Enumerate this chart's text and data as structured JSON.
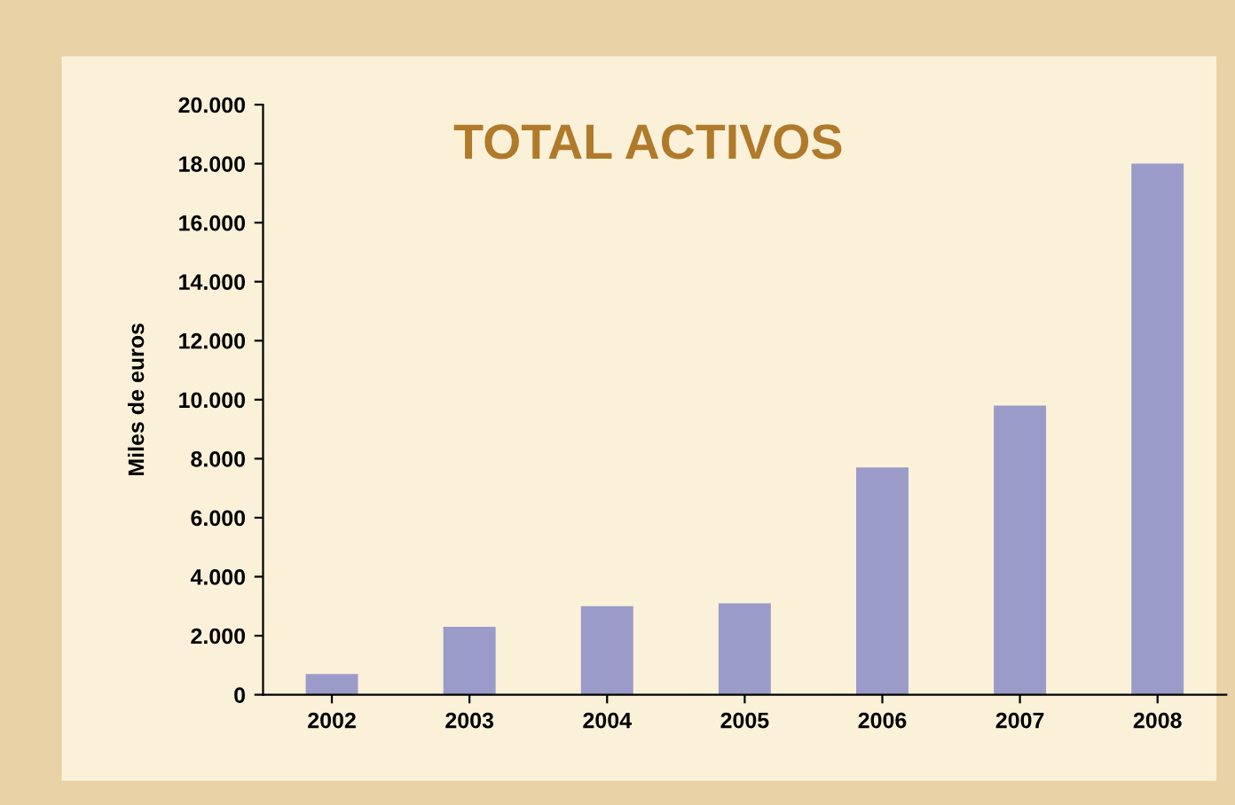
{
  "chart_data": {
    "type": "bar",
    "title": "TOTAL ACTIVOS",
    "ylabel": "Miles de euros",
    "categories": [
      "2002",
      "2003",
      "2004",
      "2005",
      "2006",
      "2007",
      "2008"
    ],
    "values": [
      700,
      2300,
      3000,
      3100,
      7700,
      9800,
      18000
    ],
    "color": "#9b9bc9",
    "ylim": [
      0,
      20000
    ],
    "yticks": [
      {
        "value": 0,
        "label": "0"
      },
      {
        "value": 2000,
        "label": "2.000"
      },
      {
        "value": 4000,
        "label": "4.000"
      },
      {
        "value": 6000,
        "label": "6.000"
      },
      {
        "value": 8000,
        "label": "8.000"
      },
      {
        "value": 10000,
        "label": "10.000"
      },
      {
        "value": 12000,
        "label": "12.000"
      },
      {
        "value": 14000,
        "label": "14.000"
      },
      {
        "value": 16000,
        "label": "16.000"
      },
      {
        "value": 18000,
        "label": "18.000"
      },
      {
        "value": 20000,
        "label": "20.000"
      }
    ],
    "grid": false
  }
}
